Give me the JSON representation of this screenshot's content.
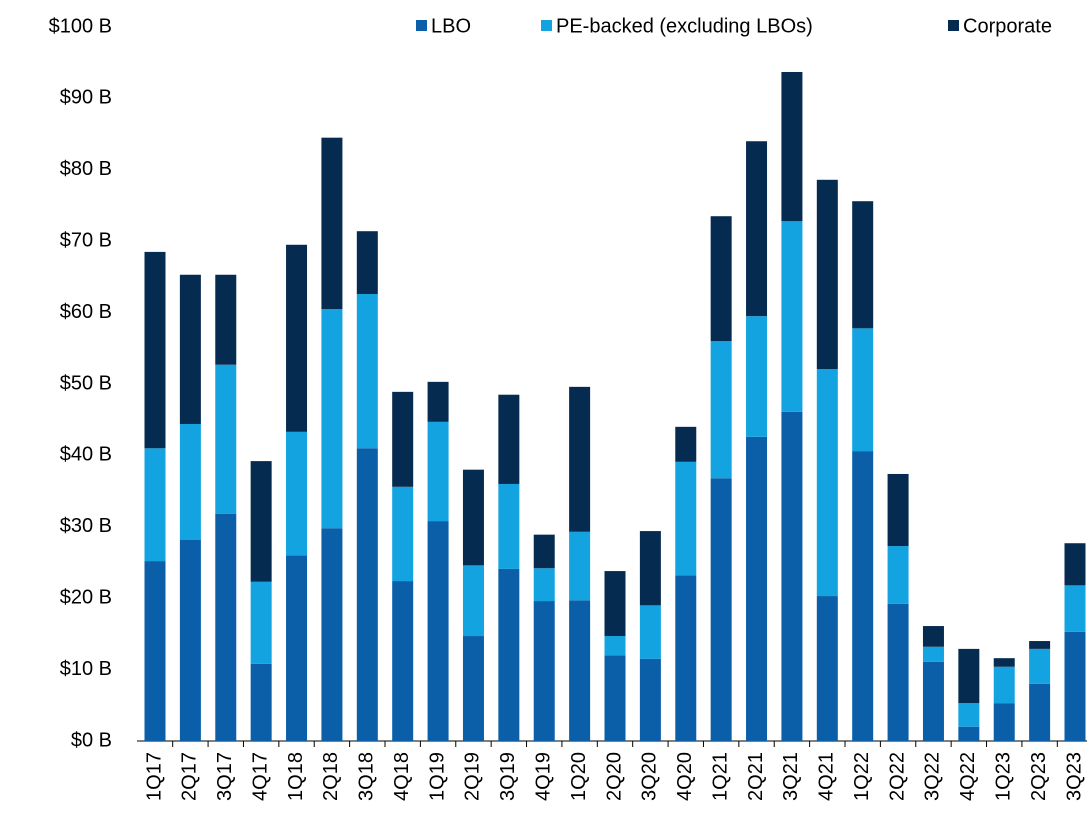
{
  "chart_data": {
    "type": "stacked_bar",
    "categories": [
      "1Q17",
      "2Q17",
      "3Q17",
      "4Q17",
      "1Q18",
      "2Q18",
      "3Q18",
      "4Q18",
      "1Q19",
      "2Q19",
      "3Q19",
      "4Q19",
      "1Q20",
      "2Q20",
      "3Q20",
      "4Q20",
      "1Q21",
      "2Q21",
      "3Q21",
      "4Q21",
      "1Q22",
      "2Q22",
      "3Q22",
      "4Q22",
      "1Q23",
      "2Q23",
      "3Q23"
    ],
    "series": [
      {
        "name": "LBO",
        "color": "#0a5fa8",
        "values": [
          25.2,
          28.2,
          31.8,
          10.8,
          26.0,
          29.8,
          41.0,
          22.4,
          30.8,
          14.7,
          24.1,
          19.6,
          19.7,
          12.0,
          11.5,
          23.2,
          36.8,
          42.6,
          46.1,
          20.3,
          40.6,
          19.2,
          11.1,
          2.0,
          5.3,
          8.0,
          15.3
        ]
      },
      {
        "name": "PE-backed (excluding LBOs)",
        "color": "#12a3e0",
        "values": [
          15.8,
          16.2,
          20.9,
          11.5,
          17.3,
          30.7,
          21.6,
          13.2,
          13.9,
          9.9,
          11.9,
          4.6,
          9.6,
          2.7,
          7.5,
          15.9,
          19.2,
          16.9,
          26.7,
          31.8,
          17.2,
          8.1,
          2.1,
          3.3,
          5.1,
          4.9,
          6.5
        ]
      },
      {
        "name": "Corporate",
        "color": "#062b50",
        "values": [
          27.5,
          20.9,
          12.6,
          16.9,
          26.2,
          24.0,
          8.8,
          13.3,
          5.6,
          13.4,
          12.5,
          4.7,
          20.3,
          9.1,
          10.4,
          4.9,
          17.5,
          24.5,
          20.9,
          26.5,
          17.8,
          10.1,
          2.9,
          7.6,
          1.2,
          1.1,
          5.9
        ]
      }
    ],
    "ylim": [
      0,
      100
    ],
    "yticks": [
      {
        "value": 0,
        "label": "$0 B"
      },
      {
        "value": 10,
        "label": "$10 B"
      },
      {
        "value": 20,
        "label": "$20 B"
      },
      {
        "value": 30,
        "label": "$30 B"
      },
      {
        "value": 40,
        "label": "$40 B"
      },
      {
        "value": 50,
        "label": "$50 B"
      },
      {
        "value": 60,
        "label": "$60 B"
      },
      {
        "value": 70,
        "label": "$70 B"
      },
      {
        "value": 80,
        "label": "$80 B"
      },
      {
        "value": 90,
        "label": "$90 B"
      },
      {
        "value": 100,
        "label": "$100 B"
      }
    ],
    "legend": "top-right",
    "grid": false
  }
}
